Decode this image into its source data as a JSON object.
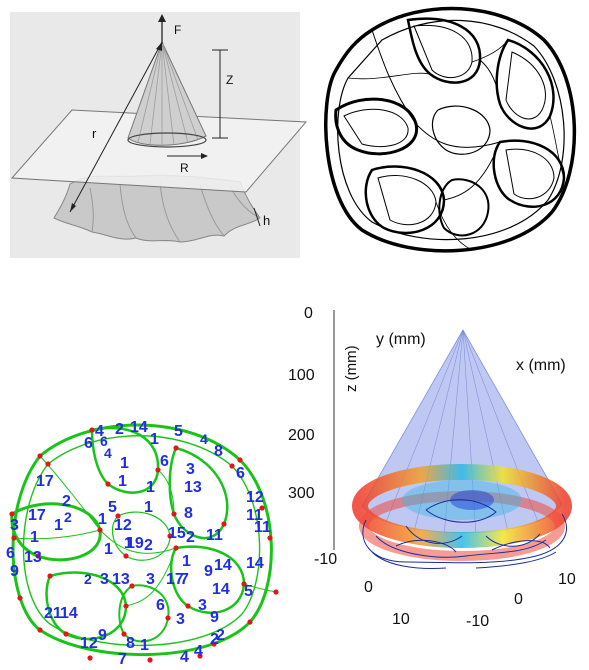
{
  "cone_diagram": {
    "labels": {
      "force": "F",
      "height": "Z",
      "slant": "r",
      "radius": "R",
      "sheet": "h"
    }
  },
  "graph_diagram": {
    "edge_labels": [
      {
        "t": "4"
      },
      {
        "t": "2"
      },
      {
        "t": "14"
      },
      {
        "t": "5"
      },
      {
        "t": "6"
      },
      {
        "t": "6"
      },
      {
        "t": "4"
      },
      {
        "t": "1"
      },
      {
        "t": "8"
      },
      {
        "t": "4"
      },
      {
        "t": "1"
      },
      {
        "t": "6"
      },
      {
        "t": "3"
      },
      {
        "t": "6"
      },
      {
        "t": "17"
      },
      {
        "t": "1"
      },
      {
        "t": "1"
      },
      {
        "t": "13"
      },
      {
        "t": "12"
      },
      {
        "t": "2"
      },
      {
        "t": "5"
      },
      {
        "t": "1"
      },
      {
        "t": "2"
      },
      {
        "t": "11"
      },
      {
        "t": "1"
      },
      {
        "t": "12"
      },
      {
        "t": "8"
      },
      {
        "t": "3"
      },
      {
        "t": "17"
      },
      {
        "t": "1"
      },
      {
        "t": "1"
      },
      {
        "t": "19"
      },
      {
        "t": "2"
      },
      {
        "t": "15"
      },
      {
        "t": "2"
      },
      {
        "t": "11"
      },
      {
        "t": "11"
      },
      {
        "t": "6"
      },
      {
        "t": "13"
      },
      {
        "t": "1"
      },
      {
        "t": "1"
      },
      {
        "t": "17"
      },
      {
        "t": "9"
      },
      {
        "t": "14"
      },
      {
        "t": "14"
      },
      {
        "t": "9"
      },
      {
        "t": "2"
      },
      {
        "t": "3"
      },
      {
        "t": "13"
      },
      {
        "t": "3"
      },
      {
        "t": "1"
      },
      {
        "t": "7"
      },
      {
        "t": "14"
      },
      {
        "t": "5"
      },
      {
        "t": "21"
      },
      {
        "t": "14"
      },
      {
        "t": "6"
      },
      {
        "t": "3"
      },
      {
        "t": "9"
      },
      {
        "t": "2"
      },
      {
        "t": "12"
      },
      {
        "t": "9"
      },
      {
        "t": "8"
      },
      {
        "t": "1"
      },
      {
        "t": "7"
      },
      {
        "t": "3"
      },
      {
        "t": "2"
      },
      {
        "t": "4"
      },
      {
        "t": "4"
      }
    ]
  },
  "chart_3d": {
    "axes": {
      "z": {
        "label": "z (mm)",
        "ticks": [
          "0",
          "100",
          "200",
          "300"
        ]
      },
      "y": {
        "label": "y (mm)",
        "ticks": [
          "-10",
          "0",
          "10"
        ]
      },
      "x": {
        "label": "x (mm)",
        "ticks": [
          "10",
          "0",
          "-10"
        ]
      }
    },
    "colors": {
      "cone": "#8b9be8",
      "ring": "#e94a3a",
      "loops": "#1b2c9e"
    }
  }
}
